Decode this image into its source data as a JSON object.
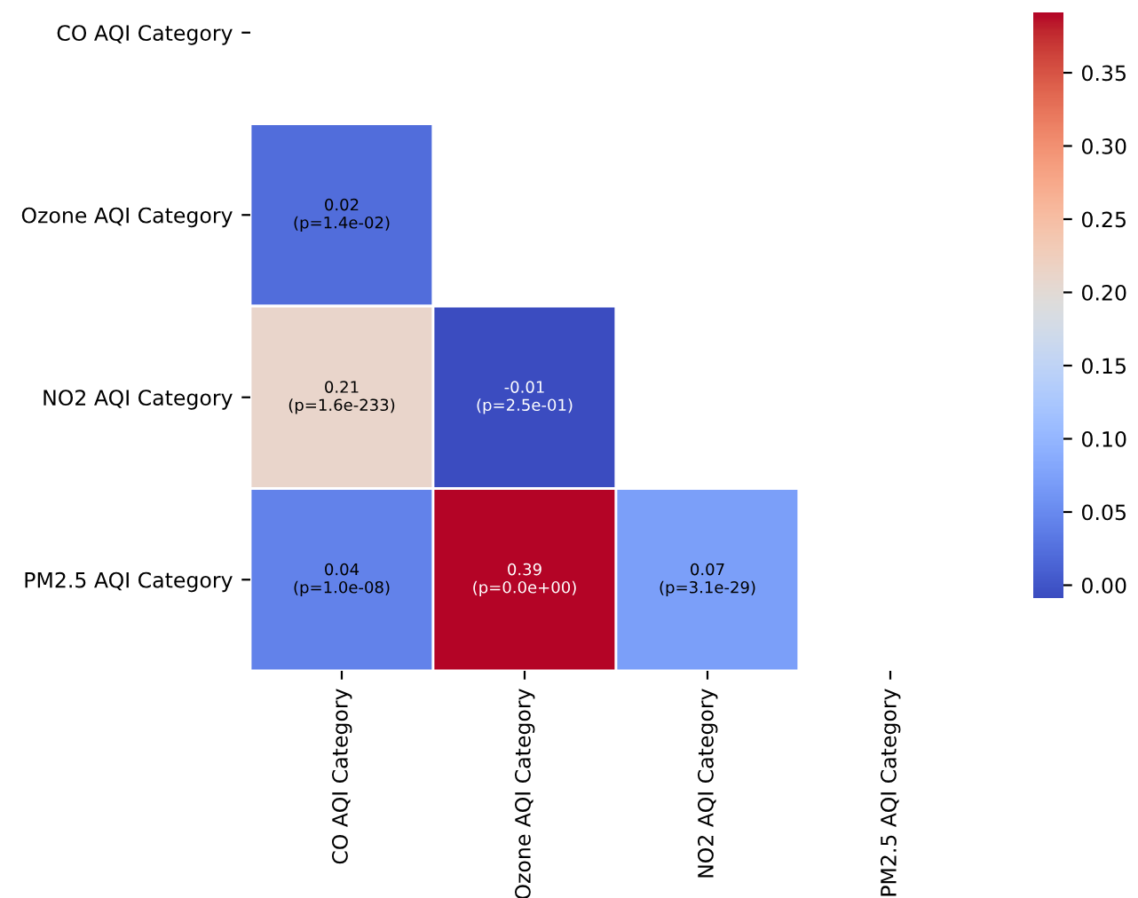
{
  "chart_data": {
    "type": "heatmap",
    "categories": [
      "CO AQI Category",
      "Ozone AQI Category",
      "NO2 AQI Category",
      "PM2.5 AQI Category"
    ],
    "y_categories": [
      "CO AQI Category",
      "Ozone AQI Category",
      "NO2 AQI Category",
      "PM2.5 AQI Category"
    ],
    "cells": [
      [
        null,
        null,
        null,
        null
      ],
      [
        0.02,
        null,
        null,
        null
      ],
      [
        0.21,
        -0.01,
        null,
        null
      ],
      [
        0.04,
        0.39,
        0.07,
        null
      ]
    ],
    "cell_labels": [
      [
        null,
        null,
        null,
        null
      ],
      [
        "0.02\n(p=1.4e-02)",
        null,
        null,
        null
      ],
      [
        "0.21\n(p=1.6e-233)",
        "-0.01\n(p=2.5e-01)",
        null,
        null
      ],
      [
        "0.04\n(p=1.0e-08)",
        "0.39\n(p=0.0e+00)",
        "0.07\n(p=3.1e-29)",
        null
      ]
    ],
    "clim": [
      -0.01,
      0.39
    ],
    "cticks": [
      {
        "value": 0,
        "label": "0.00"
      },
      {
        "value": 0.05,
        "label": "0.05"
      },
      {
        "value": 0.1,
        "label": "0.10"
      },
      {
        "value": 0.15,
        "label": "0.15"
      },
      {
        "value": 0.2,
        "label": "0.20"
      },
      {
        "value": 0.25,
        "label": "0.25"
      },
      {
        "value": 0.3,
        "label": "0.30"
      },
      {
        "value": 0.35,
        "label": "0.35"
      }
    ]
  }
}
